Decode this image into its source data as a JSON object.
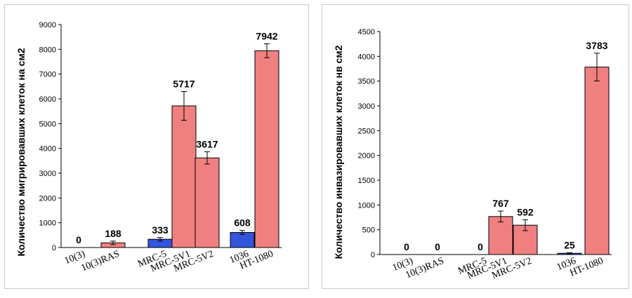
{
  "chart_data": [
    {
      "type": "bar",
      "title": "",
      "xlabel": "",
      "ylabel": "Количество мигрировавших клеток на см2",
      "ylim": [
        0,
        9000
      ],
      "yticks": [
        0,
        1000,
        2000,
        3000,
        4000,
        5000,
        6000,
        7000,
        8000,
        9000
      ],
      "grid": false,
      "colors": {
        "blue": "#3355dd",
        "pink": "#f08080"
      },
      "bars": [
        {
          "category": "10(3)",
          "value": 0,
          "label": "0",
          "color": "blue",
          "error": 0
        },
        {
          "category": "10(3)RAS",
          "value": 188,
          "label": "188",
          "color": "pink",
          "error": 70
        },
        {
          "category": "MRC-5",
          "value": 333,
          "label": "333",
          "color": "blue",
          "error": 70
        },
        {
          "category": "MRC-5V1",
          "value": 5717,
          "label": "5717",
          "color": "pink",
          "error": 580
        },
        {
          "category": "MRC-5V2",
          "value": 3617,
          "label": "3617",
          "color": "pink",
          "error": 250
        },
        {
          "category": "1036",
          "value": 608,
          "label": "608",
          "color": "blue",
          "error": 80
        },
        {
          "category": "HT-1080",
          "value": 7942,
          "label": "7942",
          "color": "pink",
          "error": 280
        }
      ]
    },
    {
      "type": "bar",
      "title": "",
      "xlabel": "",
      "ylabel": "Количество инвазировавших клеток нв см2",
      "ylim": [
        0,
        4500
      ],
      "yticks": [
        0,
        500,
        1000,
        1500,
        2000,
        2500,
        3000,
        3500,
        4000,
        4500
      ],
      "grid": false,
      "colors": {
        "blue": "#3355dd",
        "pink": "#f08080"
      },
      "bars": [
        {
          "category": "10(3)",
          "value": 0,
          "label": "0",
          "color": "blue",
          "error": 0
        },
        {
          "category": "10(3)RAS",
          "value": 0,
          "label": "0",
          "color": "pink",
          "error": 0
        },
        {
          "category": "MRC-5",
          "value": 0,
          "label": "0",
          "color": "blue",
          "error": 0
        },
        {
          "category": "MRC-5V1",
          "value": 767,
          "label": "767",
          "color": "pink",
          "error": 110
        },
        {
          "category": "MRC-5V2",
          "value": 592,
          "label": "592",
          "color": "pink",
          "error": 110
        },
        {
          "category": "1036",
          "value": 25,
          "label": "25",
          "color": "blue",
          "error": 10
        },
        {
          "category": "HT-1080",
          "value": 3783,
          "label": "3783",
          "color": "pink",
          "error": 280
        }
      ]
    }
  ]
}
